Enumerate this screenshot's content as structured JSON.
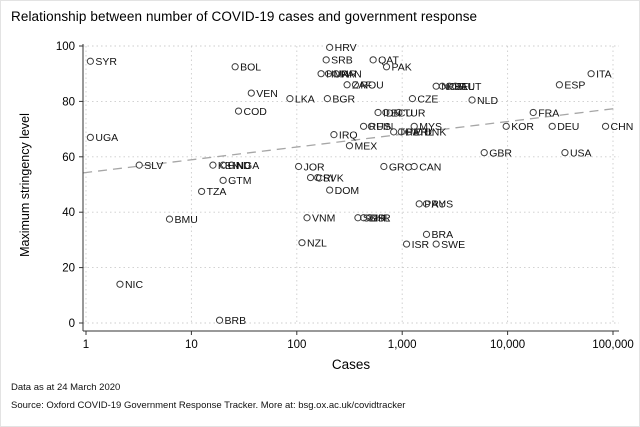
{
  "chart_data": {
    "type": "scatter",
    "title": "Relationship between number of COVID-19 cases and government response",
    "xlabel": "Cases",
    "ylabel": "Maximum stringency level",
    "x_scale": "log",
    "xlim": [
      1,
      100000
    ],
    "ylim": [
      0,
      100
    ],
    "grid": "dotted",
    "legend": "none",
    "x_ticks": [
      {
        "value": 1,
        "label": "1"
      },
      {
        "value": 10,
        "label": "10"
      },
      {
        "value": 100,
        "label": "100"
      },
      {
        "value": 1000,
        "label": "1,000"
      },
      {
        "value": 10000,
        "label": "10,000"
      },
      {
        "value": 100000,
        "label": "100,000"
      }
    ],
    "y_ticks": [
      {
        "value": 0,
        "label": "0"
      },
      {
        "value": 20,
        "label": "20"
      },
      {
        "value": 40,
        "label": "40"
      },
      {
        "value": 60,
        "label": "60"
      },
      {
        "value": 80,
        "label": "80"
      },
      {
        "value": 100,
        "label": "100"
      }
    ],
    "points": [
      {
        "label": "SYR",
        "cases": 1.1,
        "stringency": 94.5
      },
      {
        "label": "UGA",
        "cases": 1.1,
        "stringency": 67
      },
      {
        "label": "NIC",
        "cases": 2.1,
        "stringency": 14
      },
      {
        "label": "SLV",
        "cases": 3.2,
        "stringency": 57
      },
      {
        "label": "BMU",
        "cases": 6.2,
        "stringency": 37.5
      },
      {
        "label": "TZA",
        "cases": 12.5,
        "stringency": 47.5
      },
      {
        "label": "BRB",
        "cases": 18.5,
        "stringency": 1
      },
      {
        "label": "KEN",
        "cases": 16,
        "stringency": 57
      },
      {
        "label": "HND",
        "cases": 20,
        "stringency": 57
      },
      {
        "label": "NGA",
        "cases": 24,
        "stringency": 57
      },
      {
        "label": "GTM",
        "cases": 20,
        "stringency": 51.5
      },
      {
        "label": "BOL",
        "cases": 26,
        "stringency": 92.5
      },
      {
        "label": "COD",
        "cases": 28,
        "stringency": 76.5
      },
      {
        "label": "VEN",
        "cases": 37,
        "stringency": 83
      },
      {
        "label": "LKA",
        "cases": 86,
        "stringency": 81
      },
      {
        "label": "JOR",
        "cases": 104,
        "stringency": 56.5
      },
      {
        "label": "NZL",
        "cases": 112,
        "stringency": 29
      },
      {
        "label": "VNM",
        "cases": 125,
        "stringency": 38
      },
      {
        "label": "CRI",
        "cases": 135,
        "stringency": 52.5
      },
      {
        "label": "SVK",
        "cases": 158,
        "stringency": 52.5
      },
      {
        "label": "HUN",
        "cases": 170,
        "stringency": 90
      },
      {
        "label": "MAR",
        "cases": 200,
        "stringency": 90
      },
      {
        "label": "PAN",
        "cases": 235,
        "stringency": 90
      },
      {
        "label": "SRB",
        "cases": 190,
        "stringency": 95
      },
      {
        "label": "HRV",
        "cases": 205,
        "stringency": 99.5
      },
      {
        "label": "BGR",
        "cases": 195,
        "stringency": 81
      },
      {
        "label": "DOM",
        "cases": 205,
        "stringency": 48
      },
      {
        "label": "IRQ",
        "cases": 225,
        "stringency": 68
      },
      {
        "label": "ZAF",
        "cases": 300,
        "stringency": 86
      },
      {
        "label": "ROU",
        "cases": 360,
        "stringency": 86
      },
      {
        "label": "MEX",
        "cases": 316,
        "stringency": 64
      },
      {
        "label": "SGP",
        "cases": 380,
        "stringency": 38
      },
      {
        "label": "BHR",
        "cases": 430,
        "stringency": 38
      },
      {
        "label": "ISL",
        "cases": 490,
        "stringency": 38
      },
      {
        "label": "RUS",
        "cases": 430,
        "stringency": 71
      },
      {
        "label": "FIN",
        "cases": 510,
        "stringency": 71
      },
      {
        "label": "QAT",
        "cases": 530,
        "stringency": 95
      },
      {
        "label": "IDN",
        "cases": 590,
        "stringency": 76
      },
      {
        "label": "ECU",
        "cases": 700,
        "stringency": 76
      },
      {
        "label": "TUR",
        "cases": 930,
        "stringency": 76
      },
      {
        "label": "GRC",
        "cases": 670,
        "stringency": 56.5
      },
      {
        "label": "PAK",
        "cases": 710,
        "stringency": 92.5
      },
      {
        "label": "THA",
        "cases": 830,
        "stringency": 69
      },
      {
        "label": "PER",
        "cases": 980,
        "stringency": 69
      },
      {
        "label": "PHL",
        "cases": 1150,
        "stringency": 69
      },
      {
        "label": "DNK",
        "cases": 1450,
        "stringency": 69
      },
      {
        "label": "ISR",
        "cases": 1100,
        "stringency": 28.5
      },
      {
        "label": "CAN",
        "cases": 1300,
        "stringency": 56.5
      },
      {
        "label": "MYS",
        "cases": 1300,
        "stringency": 71
      },
      {
        "label": "CZE",
        "cases": 1250,
        "stringency": 81
      },
      {
        "label": "PRY",
        "cases": 1450,
        "stringency": 43
      },
      {
        "label": "AUS",
        "cases": 1700,
        "stringency": 43
      },
      {
        "label": "BRA",
        "cases": 1700,
        "stringency": 32
      },
      {
        "label": "SWE",
        "cases": 2100,
        "stringency": 28.5
      },
      {
        "label": "NOR",
        "cases": 2100,
        "stringency": 85.5
      },
      {
        "label": "PRT",
        "cases": 2400,
        "stringency": 85.5
      },
      {
        "label": "BEL",
        "cases": 2800,
        "stringency": 85.5
      },
      {
        "label": "AUT",
        "cases": 3200,
        "stringency": 85.5
      },
      {
        "label": "NLD",
        "cases": 4600,
        "stringency": 80.5
      },
      {
        "label": "GBR",
        "cases": 6000,
        "stringency": 61.5
      },
      {
        "label": "KOR",
        "cases": 9700,
        "stringency": 71
      },
      {
        "label": "FRA",
        "cases": 17500,
        "stringency": 76
      },
      {
        "label": "DEU",
        "cases": 26500,
        "stringency": 71
      },
      {
        "label": "ESP",
        "cases": 31000,
        "stringency": 86
      },
      {
        "label": "USA",
        "cases": 35000,
        "stringency": 61.5
      },
      {
        "label": "ITA",
        "cases": 62000,
        "stringency": 90
      },
      {
        "label": "CHN",
        "cases": 85000,
        "stringency": 71
      }
    ],
    "trendline": {
      "style": "dashed",
      "start": {
        "cases": 0.94,
        "stringency": 54.2
      },
      "end": {
        "cases": 114000,
        "stringency": 77.6
      }
    },
    "notes": [
      "Data as at 24 March 2020",
      "Source: Oxford COVID-19 Government Response Tracker. More at: bsg.ox.ac.uk/covidtracker"
    ]
  },
  "colors": {
    "background": "#ffffff",
    "grid": "#cccccc",
    "axis": "#333333",
    "marker": "#3d3d3d",
    "point_label": "#111111",
    "trend": "#a6a6a6",
    "text": "#000000"
  }
}
